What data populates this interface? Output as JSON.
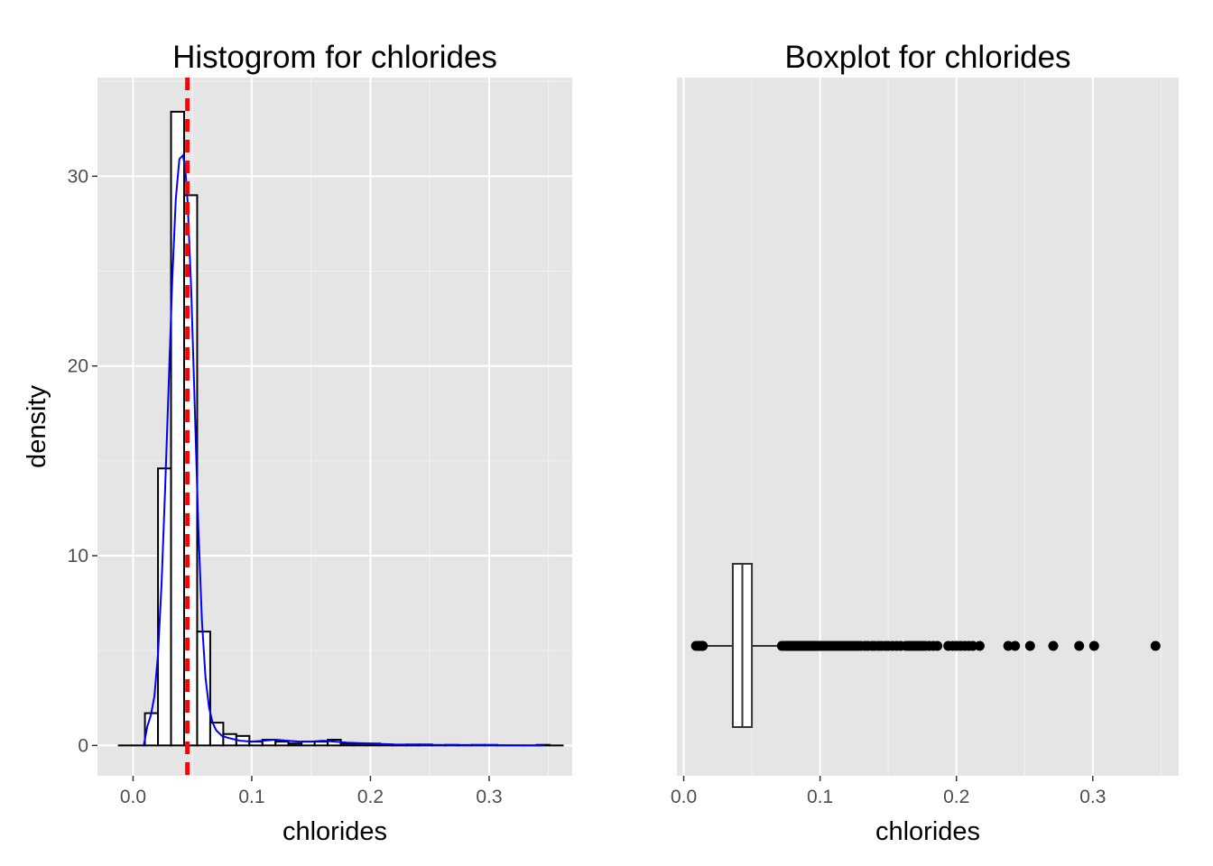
{
  "chart_data": [
    {
      "type": "histogram",
      "title": "Histogrom for chlorides",
      "xlabel": "chlorides",
      "ylabel": "density",
      "xlim": [
        -0.03,
        0.37
      ],
      "ylim": [
        -1.6,
        35.2
      ],
      "xticks": [
        0.0,
        0.1,
        0.2,
        0.3
      ],
      "xtick_labels": [
        "0.0",
        "0.1",
        "0.2",
        "0.3"
      ],
      "yticks": [
        0,
        10,
        20,
        30
      ],
      "ytick_labels": [
        "0",
        "10",
        "20",
        "30"
      ],
      "grid": true,
      "bin_width": 0.011,
      "bins": [
        {
          "x0": -0.012,
          "x1": -0.001,
          "density": 0.0
        },
        {
          "x0": -0.001,
          "x1": 0.01,
          "density": 0.0
        },
        {
          "x0": 0.01,
          "x1": 0.021,
          "density": 1.7
        },
        {
          "x0": 0.021,
          "x1": 0.032,
          "density": 14.6
        },
        {
          "x0": 0.032,
          "x1": 0.043,
          "density": 33.4
        },
        {
          "x0": 0.043,
          "x1": 0.054,
          "density": 29.0
        },
        {
          "x0": 0.054,
          "x1": 0.065,
          "density": 6.0
        },
        {
          "x0": 0.065,
          "x1": 0.076,
          "density": 1.2
        },
        {
          "x0": 0.076,
          "x1": 0.087,
          "density": 0.6
        },
        {
          "x0": 0.087,
          "x1": 0.098,
          "density": 0.5
        },
        {
          "x0": 0.098,
          "x1": 0.109,
          "density": 0.2
        },
        {
          "x0": 0.109,
          "x1": 0.12,
          "density": 0.3
        },
        {
          "x0": 0.12,
          "x1": 0.131,
          "density": 0.2
        },
        {
          "x0": 0.131,
          "x1": 0.142,
          "density": 0.1
        },
        {
          "x0": 0.142,
          "x1": 0.153,
          "density": 0.2
        },
        {
          "x0": 0.153,
          "x1": 0.164,
          "density": 0.2
        },
        {
          "x0": 0.164,
          "x1": 0.175,
          "density": 0.3
        },
        {
          "x0": 0.175,
          "x1": 0.186,
          "density": 0.1
        },
        {
          "x0": 0.186,
          "x1": 0.197,
          "density": 0.1
        },
        {
          "x0": 0.197,
          "x1": 0.208,
          "density": 0.1
        },
        {
          "x0": 0.208,
          "x1": 0.219,
          "density": 0.05
        },
        {
          "x0": 0.219,
          "x1": 0.23,
          "density": 0.0
        },
        {
          "x0": 0.23,
          "x1": 0.241,
          "density": 0.05
        },
        {
          "x0": 0.241,
          "x1": 0.252,
          "density": 0.05
        },
        {
          "x0": 0.252,
          "x1": 0.263,
          "density": 0.0
        },
        {
          "x0": 0.263,
          "x1": 0.274,
          "density": 0.03
        },
        {
          "x0": 0.274,
          "x1": 0.285,
          "density": 0.0
        },
        {
          "x0": 0.285,
          "x1": 0.296,
          "density": 0.03
        },
        {
          "x0": 0.296,
          "x1": 0.307,
          "density": 0.03
        },
        {
          "x0": 0.307,
          "x1": 0.318,
          "density": 0.0
        },
        {
          "x0": 0.318,
          "x1": 0.329,
          "density": 0.0
        },
        {
          "x0": 0.329,
          "x1": 0.34,
          "density": 0.0
        },
        {
          "x0": 0.34,
          "x1": 0.351,
          "density": 0.03
        },
        {
          "x0": 0.351,
          "x1": 0.362,
          "density": 0.0
        }
      ],
      "density_curve": {
        "color": "#0000ff",
        "x": [
          0.009,
          0.012,
          0.015,
          0.018,
          0.021,
          0.024,
          0.027,
          0.03,
          0.033,
          0.036,
          0.039,
          0.042,
          0.044,
          0.046,
          0.049,
          0.052,
          0.055,
          0.058,
          0.061,
          0.064,
          0.067,
          0.07,
          0.075,
          0.08,
          0.09,
          0.1,
          0.11,
          0.12,
          0.13,
          0.14,
          0.15,
          0.16,
          0.17,
          0.18,
          0.2,
          0.22,
          0.25,
          0.28,
          0.31,
          0.346
        ],
        "y": [
          0.0,
          1.0,
          1.6,
          2.6,
          4.8,
          8.5,
          13.5,
          19.0,
          24.5,
          28.8,
          30.9,
          31.1,
          30.4,
          28.6,
          24.0,
          17.8,
          11.5,
          6.6,
          3.6,
          2.0,
          1.2,
          0.8,
          0.5,
          0.4,
          0.25,
          0.2,
          0.25,
          0.3,
          0.25,
          0.2,
          0.2,
          0.25,
          0.2,
          0.15,
          0.1,
          0.05,
          0.03,
          0.02,
          0.01,
          0.0
        ]
      },
      "mean_line": {
        "x": 0.0458,
        "color": "#ff0000",
        "style": "dashed"
      }
    },
    {
      "type": "boxplot",
      "title": "Boxplot for chlorides",
      "xlabel": "chlorides",
      "xlim": [
        -0.005,
        0.363
      ],
      "xticks": [
        0.0,
        0.1,
        0.2,
        0.3
      ],
      "xtick_labels": [
        "0.0",
        "0.1",
        "0.2",
        "0.3"
      ],
      "grid": true,
      "whisker_low": 0.009,
      "q1": 0.036,
      "median": 0.043,
      "q3": 0.05,
      "whisker_high": 0.071,
      "outliers": [
        0.009,
        0.01,
        0.011,
        0.012,
        0.013,
        0.014,
        0.072,
        0.073,
        0.074,
        0.075,
        0.076,
        0.077,
        0.078,
        0.079,
        0.08,
        0.081,
        0.082,
        0.083,
        0.084,
        0.085,
        0.086,
        0.087,
        0.088,
        0.089,
        0.09,
        0.091,
        0.092,
        0.093,
        0.094,
        0.095,
        0.096,
        0.097,
        0.098,
        0.1,
        0.102,
        0.104,
        0.106,
        0.108,
        0.11,
        0.112,
        0.114,
        0.116,
        0.118,
        0.12,
        0.122,
        0.124,
        0.126,
        0.128,
        0.13,
        0.133,
        0.135,
        0.138,
        0.14,
        0.143,
        0.145,
        0.148,
        0.15,
        0.153,
        0.156,
        0.159,
        0.163,
        0.165,
        0.167,
        0.169,
        0.171,
        0.173,
        0.175,
        0.177,
        0.18,
        0.183,
        0.186,
        0.194,
        0.197,
        0.2,
        0.203,
        0.206,
        0.209,
        0.212,
        0.217,
        0.238,
        0.243,
        0.254,
        0.271,
        0.29,
        0.301,
        0.346
      ]
    }
  ]
}
